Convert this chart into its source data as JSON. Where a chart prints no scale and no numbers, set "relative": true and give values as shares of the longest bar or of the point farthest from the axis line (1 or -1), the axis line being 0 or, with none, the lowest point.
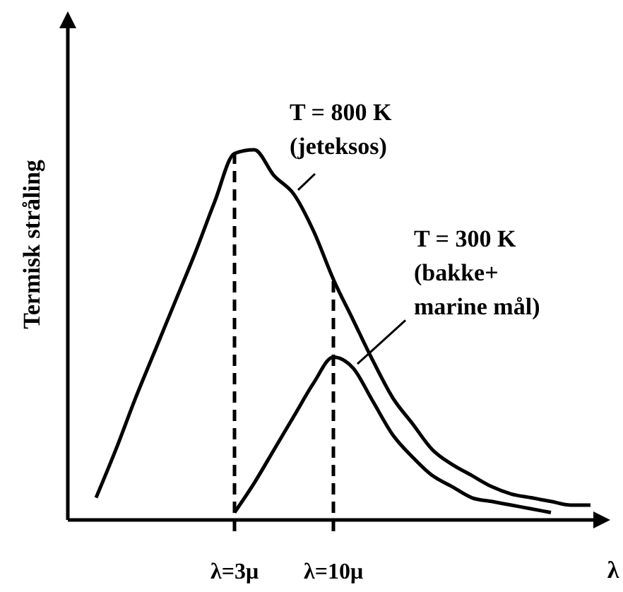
{
  "chart_data": {
    "type": "line",
    "relative": true,
    "ylabel": "Termisk stråling",
    "xlabel": "λ",
    "categories": [
      null,
      null,
      null,
      null,
      null,
      null,
      null,
      "λ=3μ",
      null,
      null,
      null,
      null,
      "λ=10μ",
      null,
      null,
      null,
      null,
      null,
      null,
      null,
      null,
      null,
      null,
      null,
      null,
      null
    ],
    "series": [
      {
        "name": "T = 800 K\n(jeteksos)",
        "color": "#000000",
        "values": [
          0.06,
          0.19,
          0.33,
          0.46,
          0.59,
          0.72,
          0.86,
          0.99,
          1.0,
          0.93,
          0.88,
          0.78,
          0.65,
          0.54,
          0.43,
          0.33,
          0.26,
          0.19,
          0.15,
          0.12,
          0.09,
          0.07,
          0.06,
          0.05,
          0.04,
          0.04
        ]
      },
      {
        "name": "T = 300 K\n(bakke+\nmarine mål)",
        "color": "#000000",
        "values": [
          null,
          null,
          null,
          null,
          null,
          null,
          null,
          0.02,
          0.1,
          0.19,
          0.28,
          0.37,
          0.44,
          0.41,
          0.32,
          0.23,
          0.17,
          0.12,
          0.09,
          0.06,
          0.05,
          0.04,
          0.03,
          0.02,
          null,
          null
        ]
      }
    ],
    "ref_lines": [
      {
        "axis": "x",
        "value": "λ=3μ",
        "color": "#000000",
        "line_style": "dashed"
      },
      {
        "axis": "x",
        "value": "λ=10μ",
        "color": "#000000",
        "line_style": "dashed"
      }
    ],
    "grid": false,
    "legend": false,
    "marker": "none",
    "line_style": "solid"
  }
}
